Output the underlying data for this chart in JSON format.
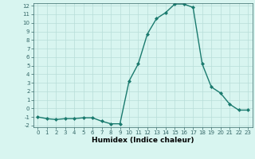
{
  "x": [
    0,
    1,
    2,
    3,
    4,
    5,
    6,
    7,
    8,
    9,
    10,
    11,
    12,
    13,
    14,
    15,
    16,
    17,
    18,
    19,
    20,
    21,
    22,
    23
  ],
  "y": [
    -1,
    -1.2,
    -1.3,
    -1.2,
    -1.2,
    -1.1,
    -1.1,
    -1.5,
    -1.8,
    -1.8,
    3.2,
    5.2,
    8.7,
    10.5,
    11.2,
    12.2,
    12.2,
    11.8,
    5.2,
    2.5,
    1.8,
    0.5,
    -0.2,
    -0.2
  ],
  "line_color": "#1a7a6e",
  "marker": "D",
  "marker_size": 2.0,
  "bg_color": "#d8f5f0",
  "grid_color": "#b8ddd8",
  "xlabel": "Humidex (Indice chaleur)",
  "ylim": [
    -2,
    12
  ],
  "xlim": [
    -0.5,
    23.5
  ],
  "yticks": [
    -2,
    -1,
    0,
    1,
    2,
    3,
    4,
    5,
    6,
    7,
    8,
    9,
    10,
    11,
    12
  ],
  "xticks": [
    0,
    1,
    2,
    3,
    4,
    5,
    6,
    7,
    8,
    9,
    10,
    11,
    12,
    13,
    14,
    15,
    16,
    17,
    18,
    19,
    20,
    21,
    22,
    23
  ],
  "tick_fontsize": 5.0,
  "xlabel_fontsize": 6.5,
  "linewidth": 1.0
}
